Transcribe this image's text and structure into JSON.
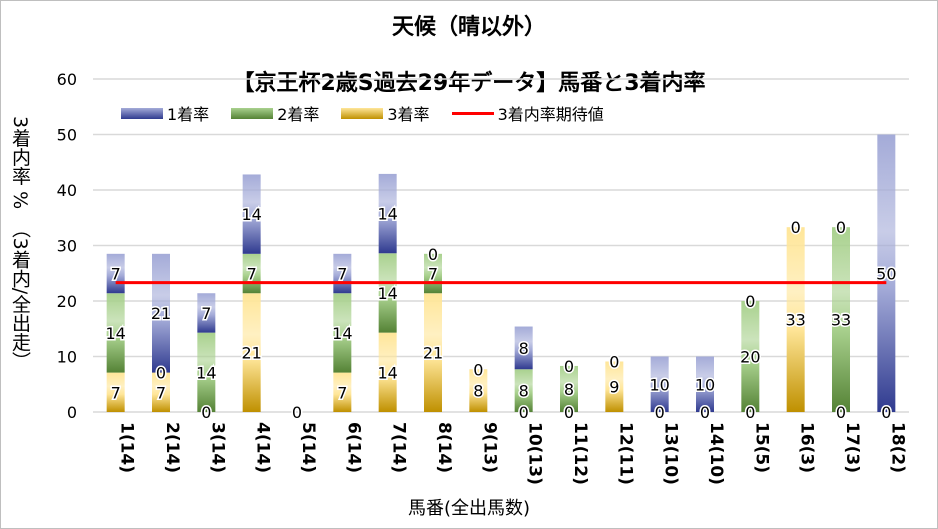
{
  "chart_data": {
    "type": "bar",
    "stacked": true,
    "title": "天候（晴以外）",
    "subtitle": "【京王杯2歳S過去29年データ】馬番と3着内率",
    "xlabel": "馬番(全出馬数)",
    "ylabel": "3着内率 %　（3着内/全出走）",
    "ylim": [
      0,
      60
    ],
    "yticks": [
      "0",
      "10",
      "20",
      "30",
      "40",
      "50",
      "60"
    ],
    "grid": true,
    "legend_position": "top",
    "categories": [
      "1(14)",
      "2(14)",
      "3(14)",
      "4(14)",
      "5(14)",
      "6(14)",
      "7(14)",
      "8(14)",
      "9(13)",
      "10(13)",
      "11(12)",
      "12(11)",
      "13(10)",
      "14(10)",
      "15(5)",
      "16(3)",
      "17(3)",
      "18(2)"
    ],
    "series": [
      {
        "name": "3着率",
        "color": "#bf9000",
        "light": "#ffe699",
        "values": [
          7.1,
          7.1,
          0,
          21.4,
          0,
          7.1,
          14.3,
          21.4,
          7.7,
          0,
          0,
          9.1,
          0,
          0,
          0,
          33.3,
          0,
          0
        ],
        "labels": [
          "7",
          "7",
          "0",
          "21",
          "0",
          "7",
          "14",
          "21",
          "8",
          "0",
          "0",
          "9",
          "0",
          "0",
          "0",
          "33",
          "0",
          "0"
        ]
      },
      {
        "name": "2着率",
        "color": "#548235",
        "light": "#a9d18e",
        "values": [
          14.3,
          0,
          14.3,
          7.1,
          0,
          14.3,
          14.3,
          7.1,
          0,
          7.7,
          8.3,
          0,
          0,
          0,
          20,
          0,
          33.3,
          0
        ],
        "labels": [
          "14",
          "0",
          "14",
          "7",
          null,
          "14",
          "14",
          "7",
          null,
          "8",
          "8",
          null,
          null,
          null,
          "20",
          null,
          "33",
          null
        ]
      },
      {
        "name": "1着率",
        "color": "#2f3a8f",
        "light": "#a4abd8",
        "values": [
          7.1,
          21.4,
          7.1,
          14.3,
          0,
          7.1,
          14.3,
          0,
          0,
          7.7,
          0,
          0,
          10,
          10,
          0,
          0,
          0,
          50
        ],
        "labels": [
          "7",
          "21",
          "7",
          "14",
          null,
          "7",
          "14",
          "0",
          "0",
          "8",
          "0",
          "0",
          "10",
          "10",
          "0",
          "0",
          "0",
          "50"
        ]
      }
    ],
    "expected_line": {
      "name": "3着内率期待値",
      "value": 23.3,
      "color": "#ff0000"
    }
  }
}
